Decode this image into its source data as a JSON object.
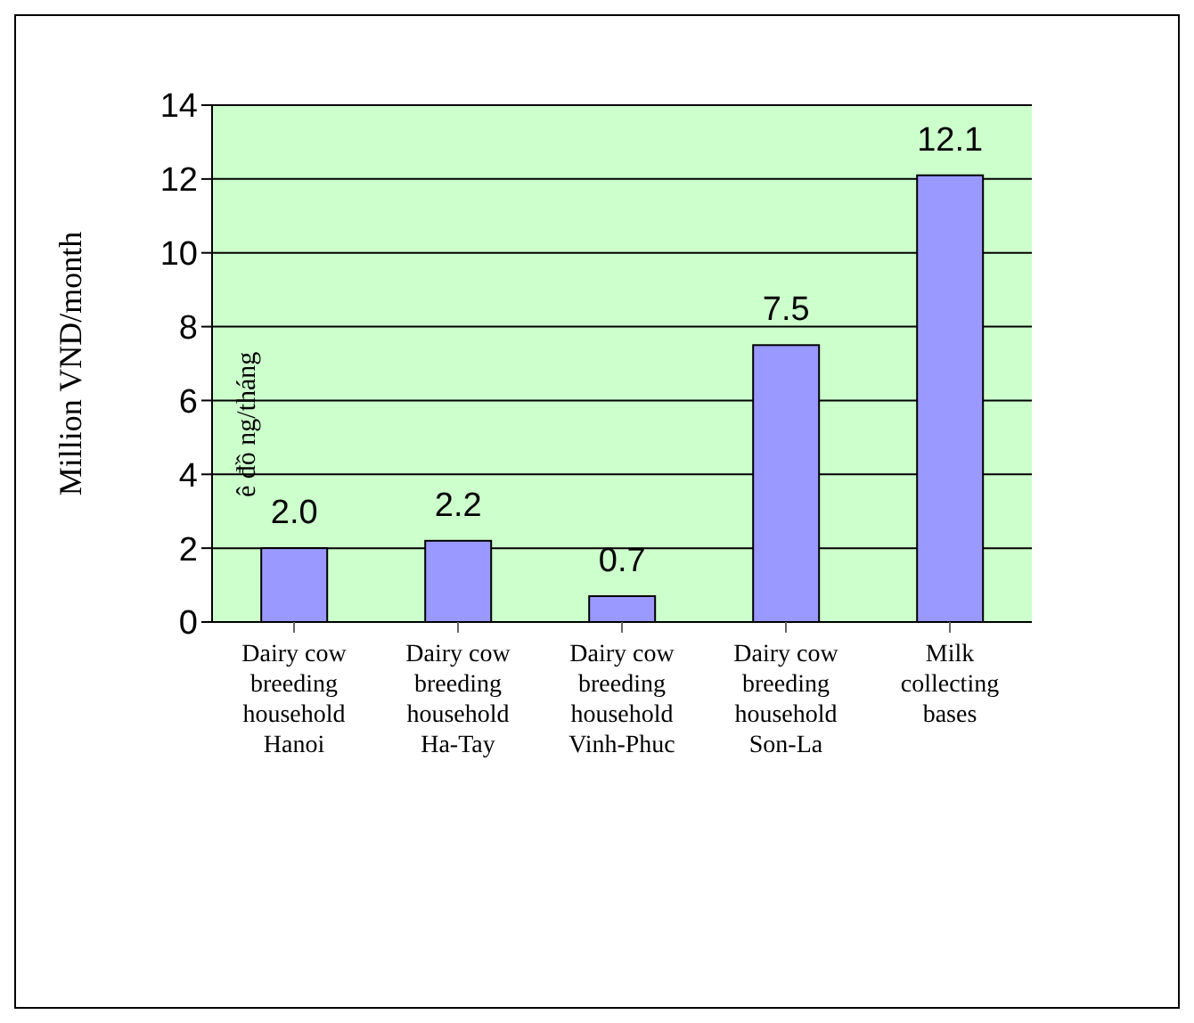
{
  "chart_data": {
    "type": "bar",
    "categories": [
      "Dairy cow\nbreeding\nhousehold\nHanoi",
      "Dairy cow\nbreeding\nhousehold\nHa-Tay",
      "Dairy cow\nbreeding\nhousehold\nVinh-Phuc",
      "Dairy cow\nbreeding\nhousehold\nSon-La",
      "Milk\ncollecting\nbases"
    ],
    "values": [
      2.0,
      2.2,
      0.7,
      7.5,
      12.1
    ],
    "value_labels": [
      "2.0",
      "2.2",
      "0.7",
      "7.5",
      "12.1"
    ],
    "color": "#9999ff",
    "ylabel": "Million VND/month",
    "annotations": [
      "ê đồ ng/tháng"
    ],
    "ylim": [
      0,
      14
    ],
    "yticks": [
      0,
      2,
      4,
      6,
      8,
      10,
      12,
      14
    ],
    "grid": "y"
  }
}
